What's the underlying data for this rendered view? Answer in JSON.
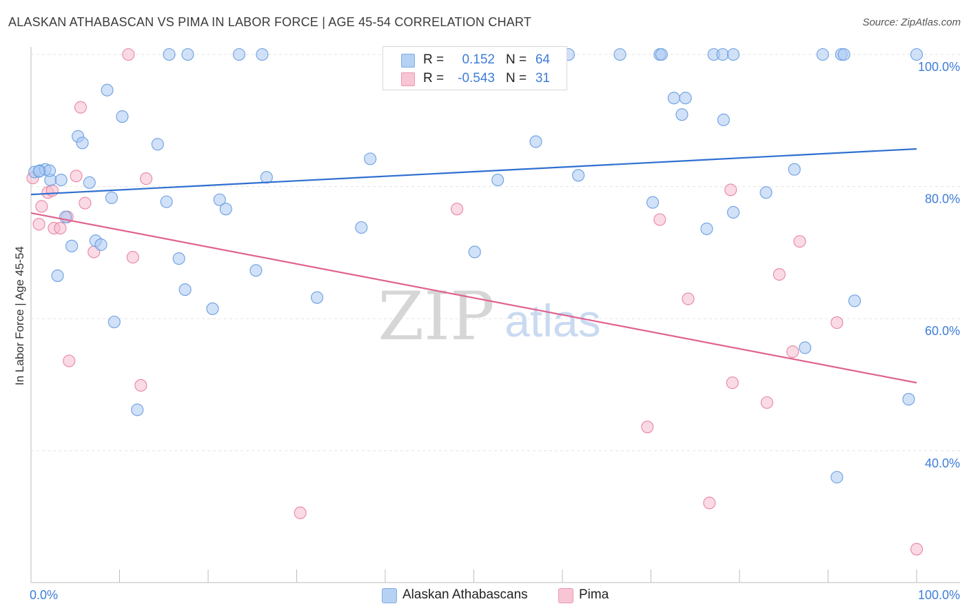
{
  "title": "ALASKAN ATHABASCAN VS PIMA IN LABOR FORCE | AGE 45-54 CORRELATION CHART",
  "source": "Source: ZipAtlas.com",
  "watermark": {
    "zip": "ZIP",
    "atlas": "atlas"
  },
  "legend": {
    "rows": [
      {
        "r_label": "R =",
        "r_value": "0.152",
        "n_label": "N =",
        "n_value": "64",
        "color": "#a9c9f2",
        "border": "#6b9fe0"
      },
      {
        "r_label": "R =",
        "r_value": "-0.543",
        "n_label": "N =",
        "n_value": "31",
        "color": "#f6bccd",
        "border": "#e884a4"
      }
    ]
  },
  "bottom_legend": [
    "Alaskan Athabascans",
    "Pima"
  ],
  "chart_data": {
    "type": "scatter",
    "title": "ALASKAN ATHABASCAN VS PIMA IN LABOR FORCE | AGE 45-54 CORRELATION CHART",
    "xlabel": "",
    "ylabel": "In Labor Force | Age 45-54",
    "xlim": [
      0,
      100
    ],
    "ylim": [
      20,
      102
    ],
    "x_tick_labels": [
      "0.0%",
      "100.0%"
    ],
    "y_ticks": [
      40,
      60,
      80,
      100
    ],
    "y_tick_labels": [
      "40.0%",
      "60.0%",
      "80.0%",
      "100.0%"
    ],
    "grid": true,
    "series": [
      {
        "name": "Alaskan Athabascans",
        "color": "#a9c9f2",
        "stroke": "#6b9fe0",
        "line_color": "#2f6fd0",
        "trend": {
          "x": [
            0,
            100
          ],
          "y": [
            78.8,
            85.7
          ]
        },
        "points": [
          [
            0.4,
            82.2
          ],
          [
            1.0,
            82.4
          ],
          [
            1.6,
            82.6
          ],
          [
            2.2,
            81.0
          ],
          [
            3.4,
            81.0
          ],
          [
            3.9,
            75.4
          ],
          [
            4.6,
            71.0
          ],
          [
            5.3,
            87.6
          ],
          [
            5.8,
            86.6
          ],
          [
            6.6,
            80.6
          ],
          [
            7.3,
            71.8
          ],
          [
            7.9,
            71.2
          ],
          [
            8.6,
            94.6
          ],
          [
            9.1,
            78.3
          ],
          [
            9.4,
            59.5
          ],
          [
            10.3,
            90.6
          ],
          [
            12.0,
            46.2
          ],
          [
            14.3,
            86.4
          ],
          [
            15.3,
            77.7
          ],
          [
            16.7,
            69.1
          ],
          [
            17.4,
            64.4
          ],
          [
            20.5,
            61.5
          ],
          [
            21.3,
            78.0
          ],
          [
            22.0,
            76.6
          ],
          [
            25.4,
            67.3
          ],
          [
            26.6,
            81.4
          ],
          [
            32.3,
            63.2
          ],
          [
            37.3,
            73.8
          ],
          [
            38.3,
            84.2
          ],
          [
            50.1,
            70.1
          ],
          [
            52.7,
            81.0
          ],
          [
            57.0,
            86.8
          ],
          [
            61.8,
            81.7
          ],
          [
            70.2,
            77.6
          ],
          [
            72.6,
            93.4
          ],
          [
            73.5,
            90.9
          ],
          [
            73.9,
            93.4
          ],
          [
            76.3,
            73.6
          ],
          [
            78.2,
            90.1
          ],
          [
            79.3,
            76.1
          ],
          [
            83.0,
            79.1
          ],
          [
            86.2,
            82.6
          ],
          [
            87.4,
            55.6
          ],
          [
            91.0,
            36.0
          ],
          [
            93.0,
            62.7
          ],
          [
            99.1,
            47.8
          ],
          [
            3.0,
            66.5
          ],
          [
            15.6,
            100
          ],
          [
            17.7,
            100
          ],
          [
            23.5,
            100
          ],
          [
            26.1,
            100
          ],
          [
            60.7,
            100
          ],
          [
            66.5,
            100
          ],
          [
            71.0,
            100
          ],
          [
            71.2,
            100
          ],
          [
            77.1,
            100
          ],
          [
            78.1,
            100
          ],
          [
            79.3,
            100
          ],
          [
            89.4,
            100
          ],
          [
            91.5,
            100
          ],
          [
            91.8,
            100
          ],
          [
            100,
            100
          ],
          [
            2.1,
            82.4
          ],
          [
            0.9,
            82.3
          ]
        ]
      },
      {
        "name": "Pima",
        "color": "#f6bccd",
        "stroke": "#e884a4",
        "line_color": "#e0628f",
        "trend": {
          "x": [
            0,
            100
          ],
          "y": [
            76.0,
            50.3
          ]
        },
        "points": [
          [
            0.2,
            81.3
          ],
          [
            0.9,
            74.3
          ],
          [
            1.2,
            77.0
          ],
          [
            1.9,
            79.1
          ],
          [
            2.4,
            79.4
          ],
          [
            2.6,
            73.7
          ],
          [
            3.3,
            73.7
          ],
          [
            4.1,
            75.4
          ],
          [
            4.3,
            53.6
          ],
          [
            5.1,
            81.6
          ],
          [
            5.6,
            92.0
          ],
          [
            6.1,
            77.5
          ],
          [
            7.1,
            70.1
          ],
          [
            11.0,
            100
          ],
          [
            11.5,
            69.3
          ],
          [
            12.4,
            49.9
          ],
          [
            13.0,
            81.2
          ],
          [
            30.4,
            30.6
          ],
          [
            48.1,
            76.6
          ],
          [
            69.6,
            43.6
          ],
          [
            71.0,
            75.0
          ],
          [
            74.2,
            63.0
          ],
          [
            76.6,
            32.1
          ],
          [
            79.0,
            79.5
          ],
          [
            79.2,
            50.3
          ],
          [
            83.1,
            47.3
          ],
          [
            84.5,
            66.7
          ],
          [
            86.0,
            55.0
          ],
          [
            86.8,
            71.7
          ],
          [
            91.0,
            59.4
          ],
          [
            100,
            25.1
          ]
        ]
      }
    ]
  }
}
